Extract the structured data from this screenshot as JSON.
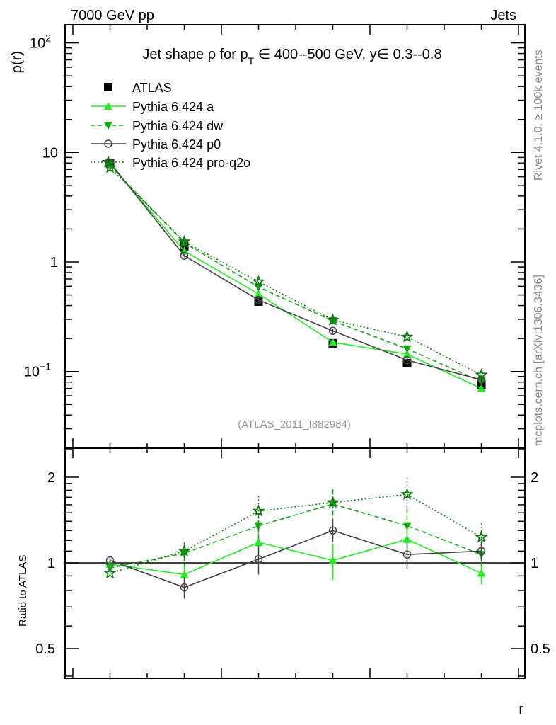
{
  "header": {
    "left": "7000 GeV pp",
    "right": "Jets"
  },
  "side_text": {
    "top": "Rivet 4.1.0, ≥ 100k events",
    "bottom": "mcplots.cern.ch [arXiv:1306.3436]"
  },
  "chart_data": [
    {
      "type": "line",
      "title_parts": {
        "a": "Jet shape ρ for p",
        "sub": "T",
        "b": " ∈ 400--500 GeV, y∈ 0.3--0.8"
      },
      "analysis_label": "(ATLAS_2011_I882984)",
      "xlabel": "r",
      "ylabel": "ρ(r)",
      "yscale": "log",
      "ylim": [
        0.017,
        147
      ],
      "xlim": [
        -0.01,
        0.61
      ],
      "x_ticks": [
        "0",
        "0.2",
        "0.4",
        "0.6"
      ],
      "x_tick_values": [
        0,
        0.2,
        0.4,
        0.6
      ],
      "y_ticks": [
        {
          "value": 100,
          "base": "10",
          "exp": "2"
        },
        {
          "value": 10,
          "base": "10",
          "exp": ""
        },
        {
          "value": 1,
          "base": "1",
          "exp": ""
        },
        {
          "value": 0.1,
          "base": "10",
          "exp": "−1"
        }
      ],
      "x": [
        0.05,
        0.15,
        0.25,
        0.35,
        0.45,
        0.55
      ],
      "legend_position": "top-left",
      "series": [
        {
          "name": "ATLAS",
          "color": "#000000",
          "marker": "square",
          "line": "none",
          "values": [
            7.9,
            1.39,
            0.435,
            0.181,
            0.119,
            0.076
          ],
          "rel_err": [
            0.02,
            0.06,
            0.08,
            0.08,
            0.05,
            0.05
          ]
        },
        {
          "name": "Pythia 6.424 a",
          "color": "#22ee22",
          "marker": "triangle-up",
          "line": "solid",
          "values": [
            7.82,
            1.26,
            0.51,
            0.185,
            0.144,
            0.07
          ],
          "rel_err": [
            0.01,
            0.03,
            0.05,
            0.06,
            0.05,
            0.06
          ]
        },
        {
          "name": "Pythia 6.424 dw",
          "color": "#11aa11",
          "marker": "triangle-down",
          "line": "dashed",
          "values": [
            7.58,
            1.5,
            0.59,
            0.29,
            0.161,
            0.081
          ],
          "rel_err": [
            0.01,
            0.03,
            0.05,
            0.06,
            0.08,
            0.06
          ]
        },
        {
          "name": "Pythia 6.424 p0",
          "color": "#444444",
          "marker": "circle-open",
          "line": "solid",
          "values": [
            8.06,
            1.14,
            0.45,
            0.235,
            0.127,
            0.084
          ],
          "rel_err": [
            0.01,
            0.03,
            0.05,
            0.05,
            0.05,
            0.05
          ]
        },
        {
          "name": "Pythia 6.424 pro-q2o",
          "color": "#117711",
          "marker": "star",
          "line": "dotted",
          "values": [
            7.27,
            1.53,
            0.66,
            0.295,
            0.207,
            0.093
          ],
          "rel_err": [
            0.01,
            0.03,
            0.06,
            0.06,
            0.08,
            0.07
          ]
        }
      ]
    },
    {
      "type": "line",
      "ylabel": "Ratio to ATLAS",
      "yscale": "log",
      "ylim": [
        0.39,
        2.53
      ],
      "y_ticks": [
        "2",
        "1",
        "0.5"
      ],
      "y_tick_values": [
        2,
        1,
        0.5
      ],
      "x": [
        0.05,
        0.15,
        0.25,
        0.35,
        0.45,
        0.55
      ],
      "reference_line": 1,
      "series": [
        {
          "name": "Pythia 6.424 a",
          "color": "#22ee22",
          "marker": "triangle-up",
          "line": "solid",
          "values": [
            0.99,
            0.91,
            1.18,
            1.02,
            1.21,
            0.92
          ],
          "err": [
            0.02,
            0.08,
            0.14,
            0.15,
            0.12,
            0.08
          ]
        },
        {
          "name": "Pythia 6.424 dw",
          "color": "#11aa11",
          "marker": "triangle-down",
          "line": "dashed",
          "values": [
            0.96,
            1.08,
            1.35,
            1.61,
            1.35,
            1.07
          ],
          "err": [
            0.02,
            0.1,
            0.14,
            0.2,
            0.2,
            0.1
          ]
        },
        {
          "name": "Pythia 6.424 p0",
          "color": "#444444",
          "marker": "circle-open",
          "line": "solid",
          "values": [
            1.02,
            0.82,
            1.03,
            1.3,
            1.07,
            1.1
          ],
          "err": [
            0.02,
            0.07,
            0.12,
            0.12,
            0.12,
            0.08
          ]
        },
        {
          "name": "Pythia 6.424 pro-q2o",
          "color": "#117711",
          "marker": "star",
          "line": "dotted",
          "values": [
            0.92,
            1.1,
            1.52,
            1.63,
            1.74,
            1.23
          ],
          "err": [
            0.02,
            0.08,
            0.2,
            0.18,
            0.25,
            0.15
          ]
        }
      ]
    }
  ]
}
